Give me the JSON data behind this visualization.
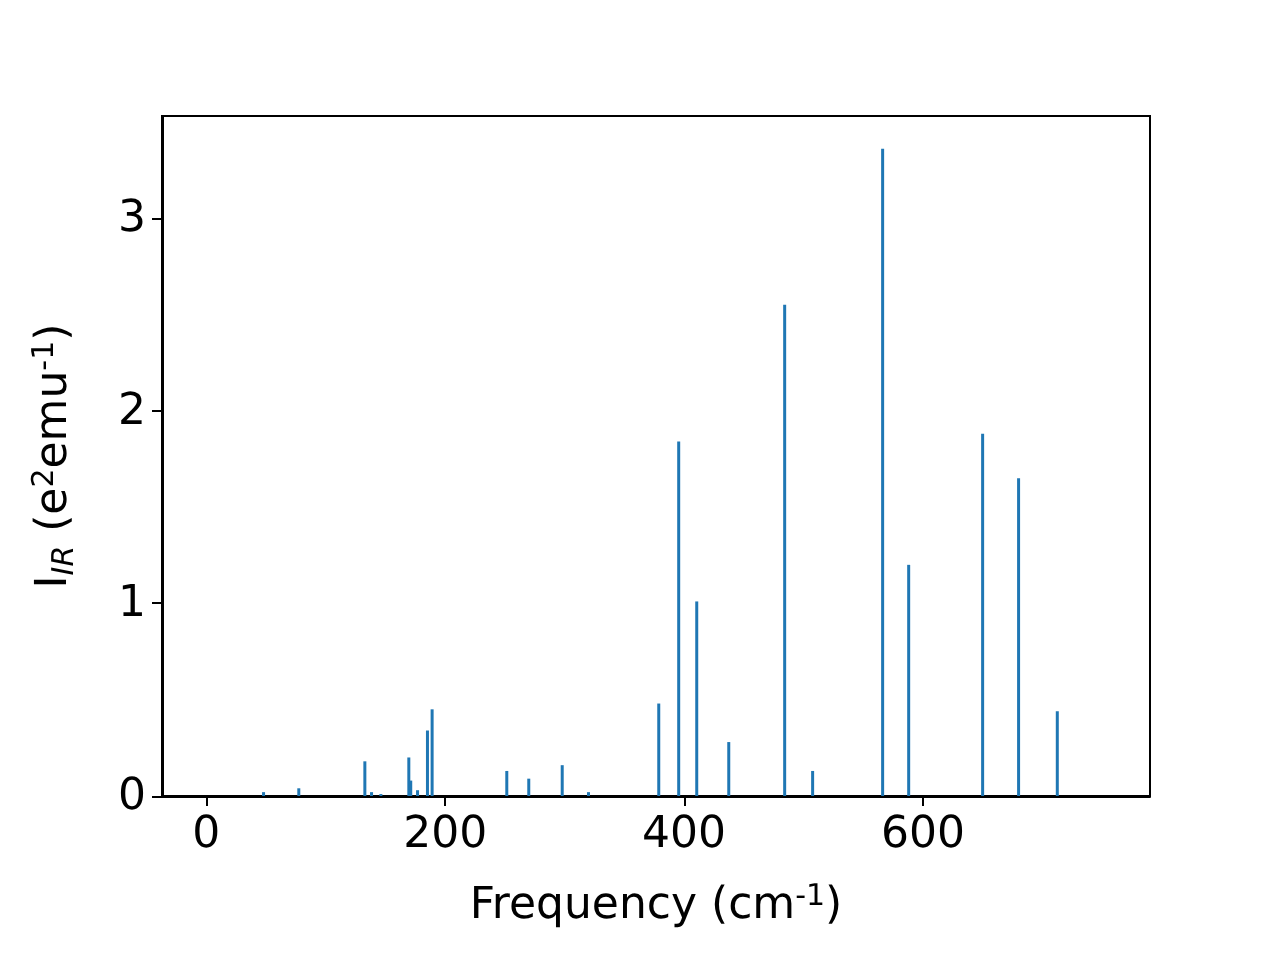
{
  "chart_data": {
    "type": "bar",
    "xlabel": "Frequency (cm$^{-1}$)",
    "ylabel": "I$_{IR}$ (e$^{2}$emu$^{-1}$)",
    "x": [
      48,
      77.5,
      132.8,
      138.4,
      146.2,
      169.6,
      171.2,
      176.9,
      185.2,
      189.1,
      251.6,
      270,
      298,
      320,
      378.8,
      395.5,
      410.6,
      437.4,
      484.2,
      507.6,
      566.2,
      588,
      649.9,
      680,
      712.4
    ],
    "values": [
      0.02,
      0.04,
      0.18,
      0.02,
      0.01,
      0.2,
      0.08,
      0.03,
      0.34,
      0.45,
      0.13,
      0.09,
      0.16,
      0.02,
      0.48,
      1.84,
      1.01,
      0.28,
      2.55,
      0.13,
      3.36,
      1.2,
      1.88,
      1.65,
      0.44
    ],
    "color": "#1f77b4",
    "xlim": [
      -37,
      790
    ],
    "ylim": [
      0,
      3.53
    ],
    "xticks": [
      0,
      200,
      400,
      600
    ],
    "yticks": [
      0,
      1,
      2,
      3
    ],
    "grid": false
  }
}
